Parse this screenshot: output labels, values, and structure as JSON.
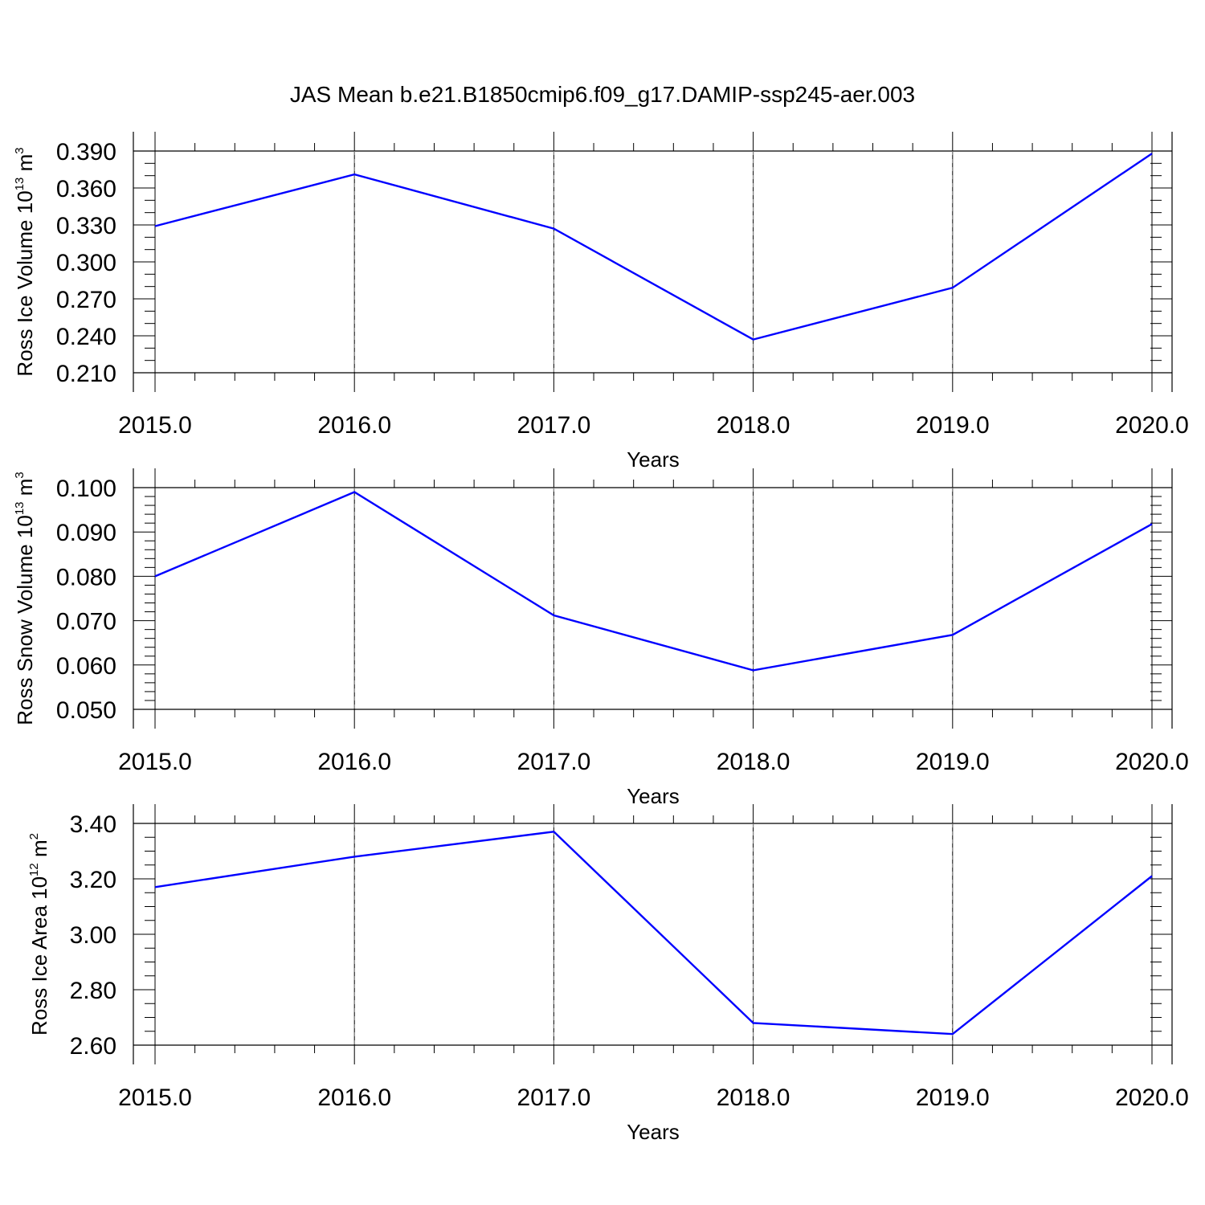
{
  "title": "JAS Mean b.e21.B1850cmip6.f09_g17.DAMIP-ssp245-aer.003",
  "colors": {
    "line": "#0000ff",
    "axis": "#000000",
    "grid": "#888888"
  },
  "chart_data": [
    {
      "type": "line",
      "ylabel": {
        "text": "Ross Ice Volume 10",
        "sup1": "13",
        "mid": " m",
        "sup2": "3"
      },
      "xlabel": "Years",
      "xlim": [
        2015,
        2020
      ],
      "ylim": [
        0.21,
        0.39
      ],
      "x_ticks": [
        "2015.0",
        "2016.0",
        "2017.0",
        "2018.0",
        "2019.0",
        "2020.0"
      ],
      "y_ticks": [
        "0.210",
        "0.240",
        "0.270",
        "0.300",
        "0.330",
        "0.360",
        "0.390"
      ],
      "x": [
        2015,
        2016,
        2017,
        2018,
        2019,
        2020
      ],
      "series": [
        {
          "values": [
            0.329,
            0.371,
            0.327,
            0.237,
            0.279,
            0.388
          ]
        }
      ],
      "grid": "vertical dashed at major x ticks"
    },
    {
      "type": "line",
      "ylabel": {
        "text": "Ross Snow Volume 10",
        "sup1": "13",
        "mid": " m",
        "sup2": "3"
      },
      "xlabel": "Years",
      "xlim": [
        2015,
        2020
      ],
      "ylim": [
        0.05,
        0.1
      ],
      "x_ticks": [
        "2015.0",
        "2016.0",
        "2017.0",
        "2018.0",
        "2019.0",
        "2020.0"
      ],
      "y_ticks": [
        "0.050",
        "0.060",
        "0.070",
        "0.080",
        "0.090",
        "0.100"
      ],
      "x": [
        2015,
        2016,
        2017,
        2018,
        2019,
        2020
      ],
      "series": [
        {
          "values": [
            0.08,
            0.099,
            0.0712,
            0.0588,
            0.0668,
            0.0918
          ]
        }
      ],
      "grid": "vertical dashed at major x ticks"
    },
    {
      "type": "line",
      "ylabel": {
        "text": "Ross Ice Area 10",
        "sup1": "12",
        "mid": " m",
        "sup2": "2"
      },
      "xlabel": "Years",
      "xlim": [
        2015,
        2020
      ],
      "ylim": [
        2.6,
        3.4
      ],
      "x_ticks": [
        "2015.0",
        "2016.0",
        "2017.0",
        "2018.0",
        "2019.0",
        "2020.0"
      ],
      "y_ticks": [
        "2.60",
        "2.80",
        "3.00",
        "3.20",
        "3.40"
      ],
      "x": [
        2015,
        2016,
        2017,
        2018,
        2019,
        2020
      ],
      "series": [
        {
          "values": [
            3.17,
            3.28,
            3.37,
            2.68,
            2.64,
            3.21
          ]
        }
      ],
      "grid": "vertical dashed at major x ticks"
    }
  ]
}
